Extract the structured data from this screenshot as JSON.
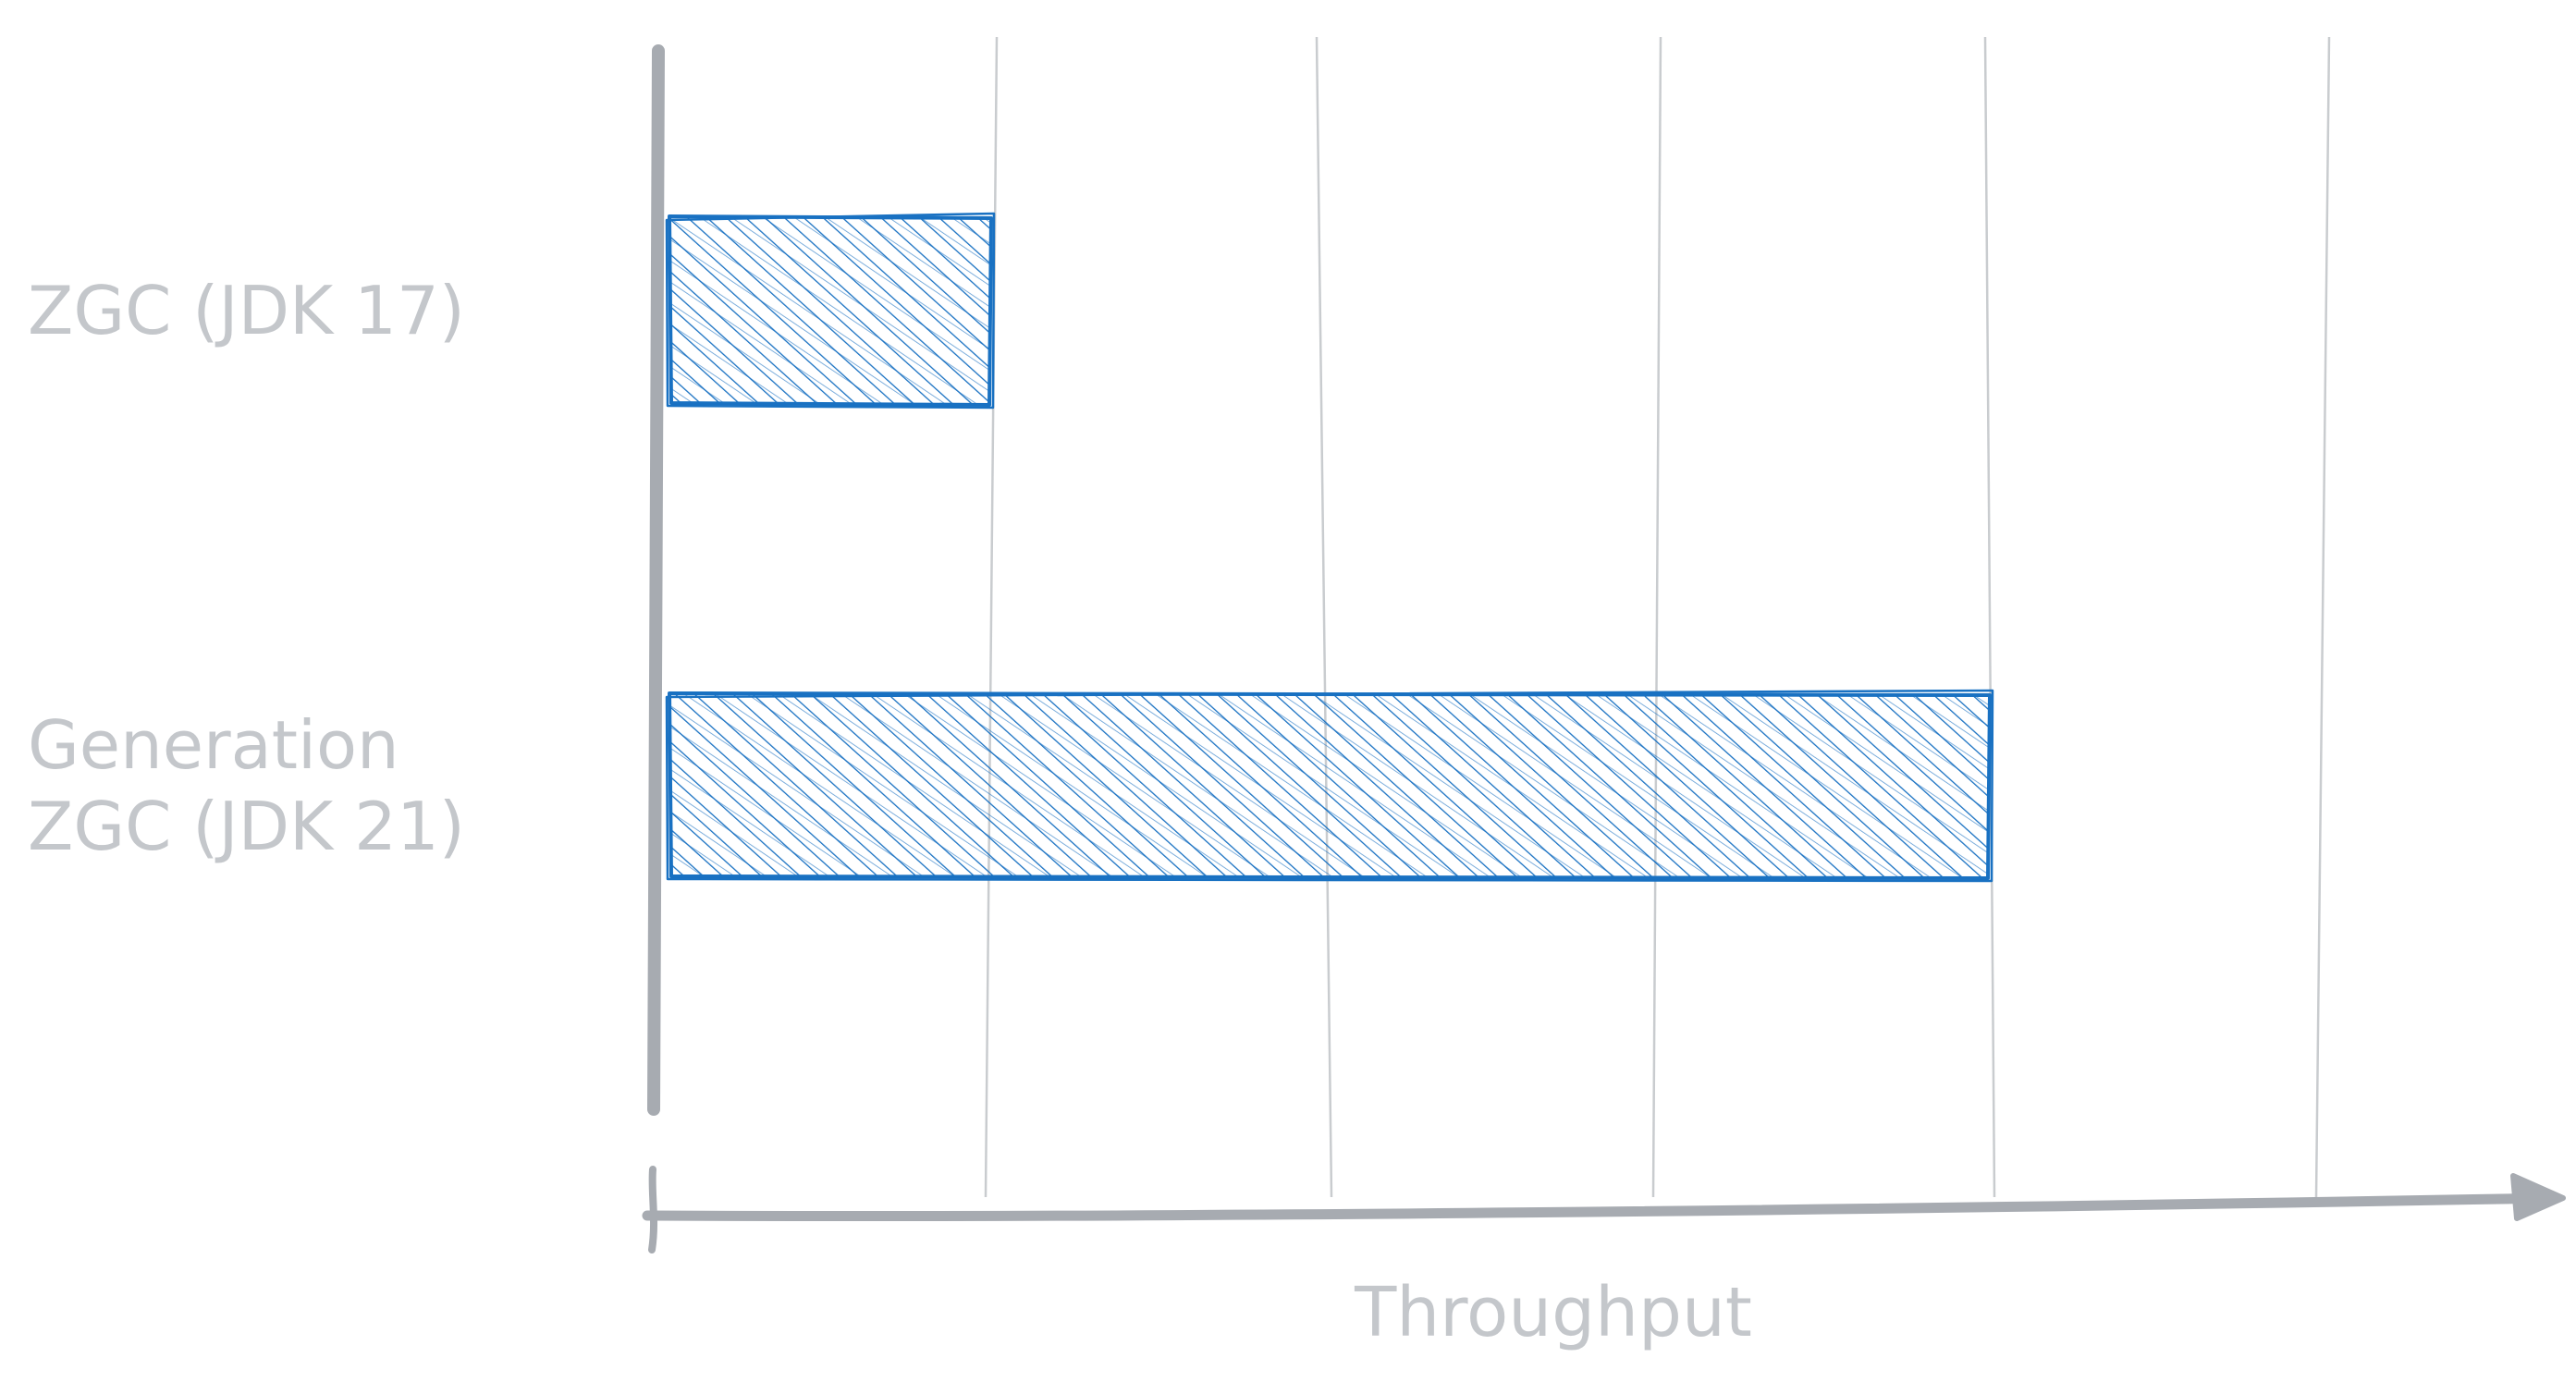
{
  "chart_data": {
    "type": "bar",
    "orientation": "horizontal",
    "categories": [
      "ZGC (JDK 17)",
      "Generation\nZGC (JDK 21)"
    ],
    "values": [
      1,
      4
    ],
    "xlabel": "Throughput",
    "ylabel": "",
    "xlim": [
      0,
      5
    ],
    "grid": true,
    "style": "hand-drawn sketch",
    "colors": {
      "bar_stroke": "#1971c2",
      "bar_hatch": "#1971c2",
      "axis": "#a7abb1",
      "grid": "#c9cccf",
      "label_text": "#c4c7cb"
    }
  }
}
